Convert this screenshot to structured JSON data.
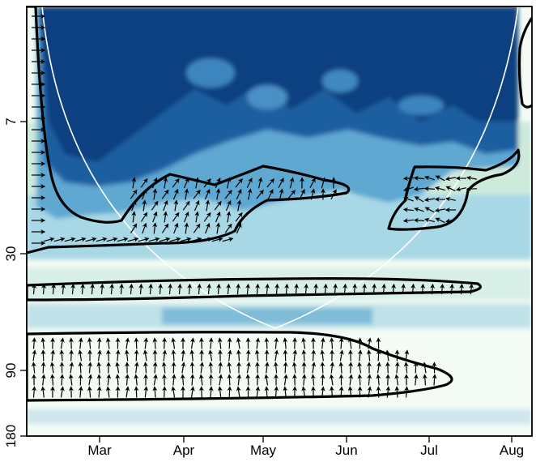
{
  "chart_data": {
    "type": "heatmap",
    "subtype": "wavelet-coherence",
    "title": "",
    "xlabel": "",
    "ylabel": "",
    "x_ticks": [
      "Mar",
      "Apr",
      "May",
      "Jun",
      "Jul",
      "Aug"
    ],
    "y_ticks": [
      "7",
      "30",
      "90",
      "180"
    ],
    "y_scale": "log",
    "ylim": [
      180,
      2
    ],
    "grid": false,
    "legend": "none",
    "colors": {
      "high": "#0b3f80",
      "mid": "#2e84be",
      "light": "#a8d8e6",
      "low": "#f3fbf4",
      "cone_of_influence": "#ffffff",
      "contour": "#000000"
    }
  }
}
